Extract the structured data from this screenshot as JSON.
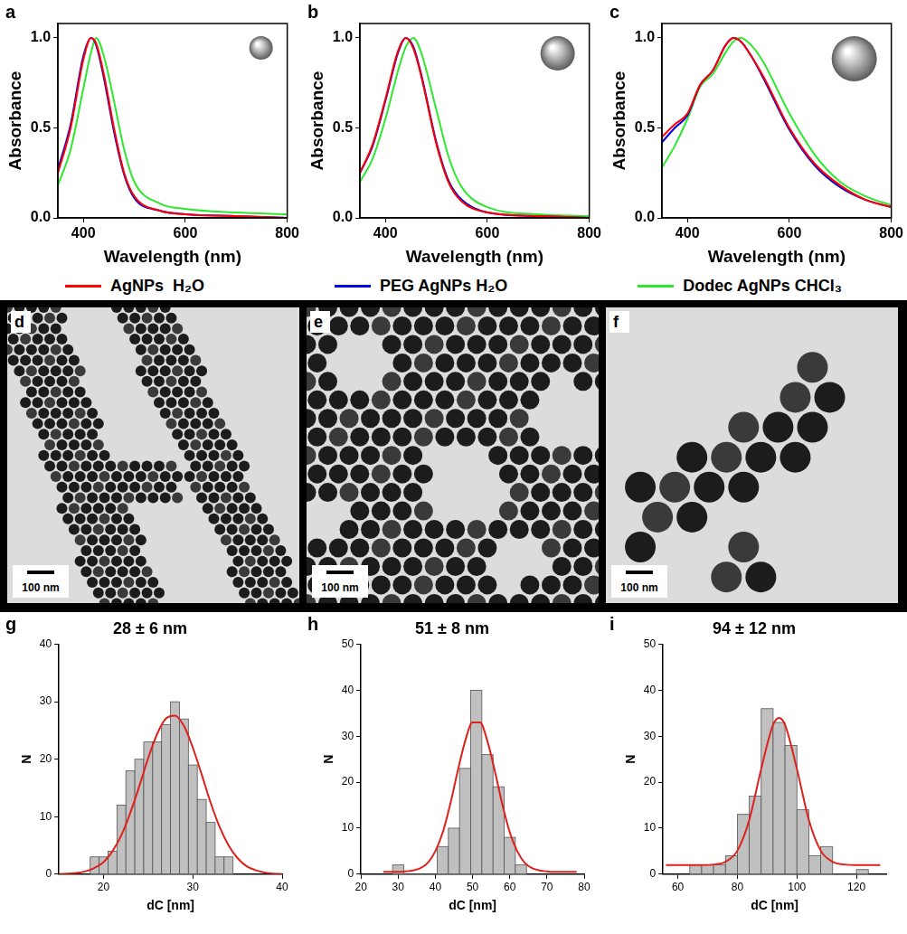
{
  "chart_data": [
    {
      "panel": "a",
      "type": "line",
      "xlabel": "Wavelength (nm)",
      "ylabel": "Absorbance",
      "x": [
        350,
        375,
        400,
        415,
        425,
        440,
        460,
        480,
        500,
        550,
        600,
        700,
        800
      ],
      "series": [
        {
          "name": "AgNPs  H₂O",
          "color": "#ff0000",
          "values": [
            0.25,
            0.5,
            0.88,
            1.0,
            0.97,
            0.8,
            0.5,
            0.25,
            0.12,
            0.04,
            0.02,
            0.01,
            0.0
          ]
        },
        {
          "name": "PEG AgNPs H₂O",
          "color": "#0000e0",
          "values": [
            0.27,
            0.52,
            0.9,
            1.0,
            0.96,
            0.78,
            0.48,
            0.24,
            0.11,
            0.04,
            0.02,
            0.01,
            0.0
          ]
        },
        {
          "name": "Dodec AgNPs CHCl₃",
          "color": "#2ee82e",
          "values": [
            0.18,
            0.38,
            0.72,
            0.92,
            1.0,
            0.9,
            0.65,
            0.38,
            0.2,
            0.08,
            0.05,
            0.03,
            0.02
          ]
        }
      ],
      "xlim": [
        350,
        800
      ],
      "xticks": [
        400,
        600,
        800
      ],
      "ylim": [
        0,
        1.08
      ],
      "yticks": [
        {
          "value": 0,
          "label": "0.0"
        },
        {
          "value": 0.5,
          "label": "0.5"
        },
        {
          "value": 1,
          "label": "1.0"
        }
      ],
      "grid": false,
      "legend": "bottom"
    },
    {
      "panel": "b",
      "type": "line",
      "xlabel": "Wavelength (nm)",
      "ylabel": "Absorbance",
      "x": [
        350,
        375,
        400,
        425,
        440,
        455,
        470,
        500,
        525,
        550,
        600,
        700,
        800
      ],
      "series": [
        {
          "name": "AgNPs  H₂O",
          "color": "#ff0000",
          "values": [
            0.25,
            0.41,
            0.66,
            0.93,
            1.0,
            0.94,
            0.79,
            0.41,
            0.19,
            0.09,
            0.03,
            0.01,
            0.0
          ]
        },
        {
          "name": "PEG AgNPs H₂O",
          "color": "#0000e0",
          "values": [
            0.25,
            0.4,
            0.65,
            0.92,
            1.0,
            0.95,
            0.8,
            0.42,
            0.2,
            0.1,
            0.03,
            0.01,
            0.0
          ]
        },
        {
          "name": "Dodec AgNPs CHCl₃",
          "color": "#2ee82e",
          "values": [
            0.2,
            0.33,
            0.55,
            0.82,
            0.95,
            1.0,
            0.92,
            0.6,
            0.33,
            0.17,
            0.06,
            0.02,
            0.01
          ]
        }
      ],
      "xlim": [
        350,
        800
      ],
      "xticks": [
        400,
        600,
        800
      ],
      "ylim": [
        0,
        1.08
      ],
      "yticks": [
        {
          "value": 0,
          "label": "0.0"
        },
        {
          "value": 0.5,
          "label": "0.5"
        },
        {
          "value": 1,
          "label": "1.0"
        }
      ],
      "grid": false,
      "legend": "bottom"
    },
    {
      "panel": "c",
      "type": "line",
      "xlabel": "Wavelength (nm)",
      "ylabel": "Absorbance",
      "x": [
        350,
        375,
        400,
        425,
        450,
        475,
        490,
        505,
        525,
        550,
        600,
        650,
        700,
        750,
        800
      ],
      "series": [
        {
          "name": "AgNPs  H₂O",
          "color": "#ff0000",
          "values": [
            0.45,
            0.52,
            0.58,
            0.74,
            0.82,
            0.96,
            1.0,
            0.98,
            0.9,
            0.78,
            0.5,
            0.3,
            0.18,
            0.1,
            0.06
          ]
        },
        {
          "name": "PEG AgNPs H₂O",
          "color": "#0000e0",
          "values": [
            0.42,
            0.5,
            0.57,
            0.74,
            0.82,
            0.96,
            1.0,
            0.98,
            0.9,
            0.77,
            0.49,
            0.29,
            0.17,
            0.1,
            0.06
          ]
        },
        {
          "name": "Dodec AgNPs CHCl₃",
          "color": "#2ee82e",
          "values": [
            0.28,
            0.4,
            0.55,
            0.73,
            0.8,
            0.92,
            0.98,
            1.0,
            0.96,
            0.86,
            0.58,
            0.35,
            0.2,
            0.12,
            0.07
          ]
        }
      ],
      "xlim": [
        350,
        800
      ],
      "xticks": [
        400,
        600,
        800
      ],
      "ylim": [
        0,
        1.08
      ],
      "yticks": [
        {
          "value": 0,
          "label": "0.0"
        },
        {
          "value": 0.5,
          "label": "0.5"
        },
        {
          "value": 1,
          "label": "1.0"
        }
      ],
      "grid": false,
      "legend": "bottom"
    },
    {
      "panel": "g",
      "type": "histogram",
      "title": "28 ± 6 nm",
      "xlabel": "dC [nm]",
      "ylabel": "N",
      "bins": [
        18.5,
        19.5,
        20.5,
        21.5,
        22.5,
        23.5,
        24.5,
        25.5,
        26.5,
        27.5,
        28.5,
        29.5,
        30.5,
        31.5,
        32.5,
        33.5,
        34.5
      ],
      "values": [
        3,
        3,
        4,
        12,
        18,
        20,
        23,
        23,
        26,
        30,
        27,
        19,
        13,
        9,
        3,
        3
      ],
      "color": "#c0c0c0",
      "fit": {
        "x": [
          15,
          16,
          17,
          18,
          19,
          20,
          21,
          22,
          23,
          24,
          25,
          26,
          27,
          28,
          29,
          30,
          31,
          32,
          33,
          34,
          35,
          36,
          37,
          38,
          39,
          40
        ],
        "values": [
          0,
          0.1,
          0.2,
          0.5,
          1.1,
          2.1,
          4.0,
          6.8,
          10.7,
          15.3,
          20.2,
          24.4,
          27.1,
          27.6,
          25.8,
          22.0,
          17.3,
          12.4,
          8.2,
          5.0,
          2.8,
          1.4,
          0.7,
          0.3,
          0.1,
          0
        ],
        "color": "#e0201b"
      },
      "xlim": [
        15,
        40
      ],
      "xticks": [
        20,
        30,
        40
      ],
      "ylim": [
        0,
        40
      ],
      "yticks": [
        0,
        10,
        20,
        30,
        40
      ],
      "grid": false
    },
    {
      "panel": "h",
      "type": "histogram",
      "title": "51 ± 8 nm",
      "xlabel": "dC [nm]",
      "ylabel": "N",
      "bins": [
        28.5,
        31.5,
        34.5,
        37.5,
        40.5,
        43.5,
        46.5,
        49.5,
        52.5,
        55.5,
        58.5,
        61.5,
        64.5
      ],
      "values": [
        2,
        0,
        0,
        0,
        6,
        10,
        23,
        40,
        26,
        19,
        8,
        2
      ],
      "color": "#c0c0c0",
      "fit": {
        "x": [
          26,
          28,
          30,
          32,
          34,
          36,
          38,
          40,
          42,
          44,
          46,
          48,
          50,
          52,
          54,
          56,
          58,
          60,
          62,
          64,
          66,
          68,
          70,
          72,
          74,
          76,
          78
        ],
        "values": [
          0.5,
          0.5,
          0.5,
          0.6,
          0.8,
          1.3,
          2.5,
          5.0,
          9.1,
          15.2,
          22.4,
          28.9,
          33.0,
          33.0,
          28.9,
          22.4,
          15.2,
          9.1,
          5.0,
          2.5,
          1.3,
          0.8,
          0.6,
          0.5,
          0.5,
          0.5,
          0.5
        ],
        "color": "#e0201b"
      },
      "xlim": [
        20,
        80
      ],
      "xticks": [
        20,
        30,
        40,
        50,
        60,
        70,
        80
      ],
      "ylim": [
        0,
        50
      ],
      "yticks": [
        0,
        10,
        20,
        30,
        40,
        50
      ],
      "grid": false
    },
    {
      "panel": "i",
      "type": "histogram",
      "title": "94 ± 12 nm",
      "xlabel": "dC [nm]",
      "ylabel": "N",
      "bins": [
        64,
        68,
        72,
        76,
        80,
        84,
        88,
        92,
        96,
        100,
        104,
        108,
        112,
        116,
        120,
        124
      ],
      "values": [
        2,
        2,
        2,
        4,
        13,
        17,
        36,
        33,
        28,
        14,
        4,
        6,
        0,
        0,
        1
      ],
      "color": "#c0c0c0",
      "fit": {
        "x": [
          56,
          60,
          64,
          68,
          72,
          76,
          80,
          84,
          88,
          92,
          94,
          96,
          100,
          104,
          108,
          112,
          116,
          120,
          124,
          128
        ],
        "values": [
          2,
          2,
          2,
          2,
          2.1,
          2.7,
          5.1,
          11.8,
          22.9,
          32.5,
          34.0,
          32.5,
          22.9,
          11.8,
          5.1,
          2.7,
          2.1,
          2,
          2,
          2
        ],
        "color": "#e0201b"
      },
      "xlim": [
        55,
        130
      ],
      "xticks": [
        60,
        80,
        100,
        120
      ],
      "ylim": [
        0,
        50
      ],
      "yticks": [
        0,
        10,
        20,
        30,
        40,
        50
      ],
      "grid": false
    }
  ],
  "images": [
    {
      "panel": "d",
      "scale_bar": "100 nm"
    },
    {
      "panel": "e",
      "scale_bar": "100 nm"
    },
    {
      "panel": "f",
      "scale_bar": "100 nm"
    }
  ]
}
